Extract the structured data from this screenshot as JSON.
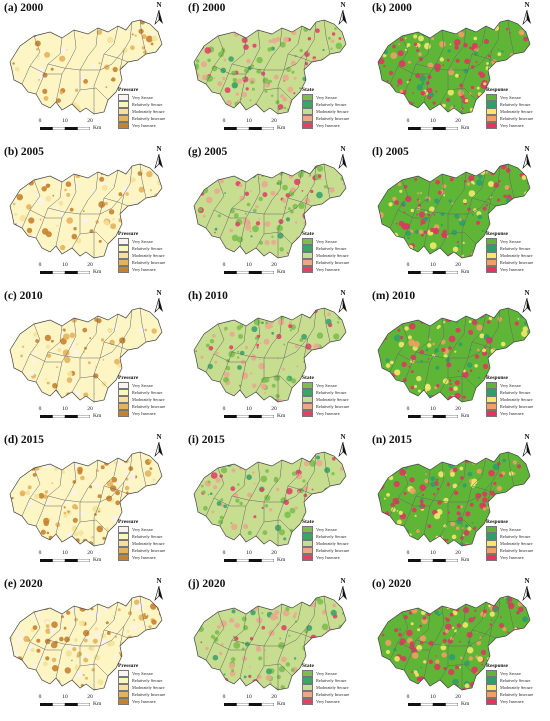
{
  "panels": [
    {
      "id": "a",
      "title": "(a) 2000",
      "theme": "pressure",
      "seed": 3,
      "density": 0.18
    },
    {
      "id": "f",
      "title": "(f) 2000",
      "theme": "state",
      "seed": 11,
      "density": 0.5
    },
    {
      "id": "k",
      "title": "(k) 2000",
      "theme": "response",
      "seed": 21,
      "density": 0.55
    },
    {
      "id": "b",
      "title": "(b) 2005",
      "theme": "pressure",
      "seed": 5,
      "density": 0.22
    },
    {
      "id": "g",
      "title": "(g) 2005",
      "theme": "state",
      "seed": 13,
      "density": 0.45
    },
    {
      "id": "l",
      "title": "(l) 2005",
      "theme": "response",
      "seed": 23,
      "density": 0.5
    },
    {
      "id": "c",
      "title": "(c) 2010",
      "theme": "pressure",
      "seed": 7,
      "density": 0.3
    },
    {
      "id": "h",
      "title": "(h) 2010",
      "theme": "state",
      "seed": 15,
      "density": 0.35
    },
    {
      "id": "m",
      "title": "(m) 2010",
      "theme": "response",
      "seed": 25,
      "density": 0.5
    },
    {
      "id": "d",
      "title": "(d) 2015",
      "theme": "pressure",
      "seed": 8,
      "density": 0.4
    },
    {
      "id": "i",
      "title": "(i) 2015",
      "theme": "state",
      "seed": 17,
      "density": 0.3
    },
    {
      "id": "n",
      "title": "(n) 2015",
      "theme": "response",
      "seed": 27,
      "density": 0.55
    },
    {
      "id": "e",
      "title": "(e) 2020",
      "theme": "pressure",
      "seed": 9,
      "density": 0.5
    },
    {
      "id": "j",
      "title": "(j) 2020",
      "theme": "state",
      "seed": 19,
      "density": 0.35
    },
    {
      "id": "o",
      "title": "(o) 2020",
      "theme": "response",
      "seed": 29,
      "density": 0.6
    }
  ],
  "legends": {
    "pressure": {
      "title": "Pressure",
      "items": [
        {
          "label": "Very Secure",
          "color": "#fbf3ef"
        },
        {
          "label": "Relatively Secure",
          "color": "#fdf5c4"
        },
        {
          "label": "Moderately Secure",
          "color": "#f4e29a"
        },
        {
          "label": "Relatively Insecure",
          "color": "#e6b25d"
        },
        {
          "label": "Very Insecure",
          "color": "#c8822e"
        }
      ]
    },
    "state": {
      "title": "State",
      "items": [
        {
          "label": "Very Secure",
          "color": "#7bbf4e"
        },
        {
          "label": "Relatively Secure",
          "color": "#3da36a"
        },
        {
          "label": "Moderately Secure",
          "color": "#c7dd8f"
        },
        {
          "label": "Relatively Insecure",
          "color": "#e9a98f"
        },
        {
          "label": "Very Insecure",
          "color": "#e0436a"
        }
      ]
    },
    "response": {
      "title": "Response",
      "items": [
        {
          "label": "Very Secure",
          "color": "#5fb636"
        },
        {
          "label": "Relatively Secure",
          "color": "#2f9e6a"
        },
        {
          "label": "Moderately Secure",
          "color": "#f2e96c"
        },
        {
          "label": "Relatively Insecure",
          "color": "#f0a064"
        },
        {
          "label": "Very Insecure",
          "color": "#e0365f"
        }
      ]
    }
  },
  "scale": {
    "ticks": [
      "0",
      "10",
      "20"
    ],
    "unit": "Km"
  },
  "north_label": "N"
}
